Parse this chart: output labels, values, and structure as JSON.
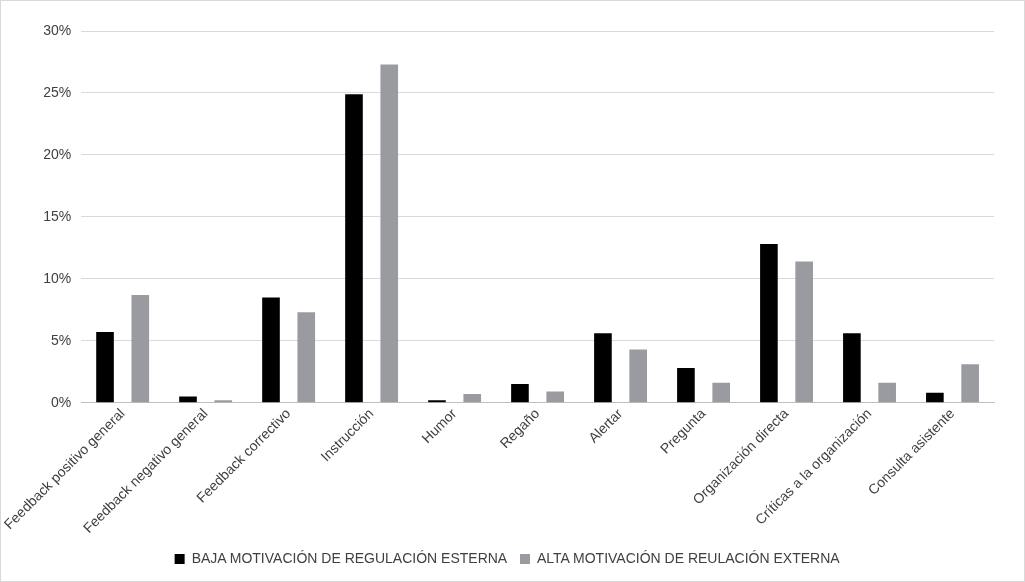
{
  "chart_data": {
    "type": "bar",
    "categories": [
      "Feedback positivo general",
      "Feedback negativo general",
      "Feedback correctivo",
      "Instrucción",
      "Humor",
      "Regaño",
      "Alertar",
      "Pregunta",
      "Organización directa",
      "Críticas a la organización",
      "Consulta asistente"
    ],
    "series": [
      {
        "name": "BAJA MOTIVACIÓN DE REGULACIÓN ESTERNA",
        "color": "#000000",
        "values": [
          5.7,
          0.5,
          8.5,
          24.9,
          0.2,
          1.5,
          5.6,
          2.8,
          12.8,
          5.6,
          0.8
        ]
      },
      {
        "name": "ALTA MOTIVACIÓN DE REULACIÓN EXTERNA",
        "color": "#999ba0",
        "values": [
          8.7,
          0.2,
          7.3,
          27.3,
          0.7,
          0.9,
          4.3,
          1.6,
          11.4,
          1.6,
          3.1
        ]
      }
    ],
    "ylim": [
      0,
      30
    ],
    "yticks": [
      {
        "value": 0,
        "label": "0%"
      },
      {
        "value": 5,
        "label": "5%"
      },
      {
        "value": 10,
        "label": "10%"
      },
      {
        "value": 15,
        "label": "15%"
      },
      {
        "value": 20,
        "label": "20%"
      },
      {
        "value": 25,
        "label": "25%"
      },
      {
        "value": 30,
        "label": "30%"
      }
    ],
    "grid": "y",
    "legend": "bottom"
  }
}
